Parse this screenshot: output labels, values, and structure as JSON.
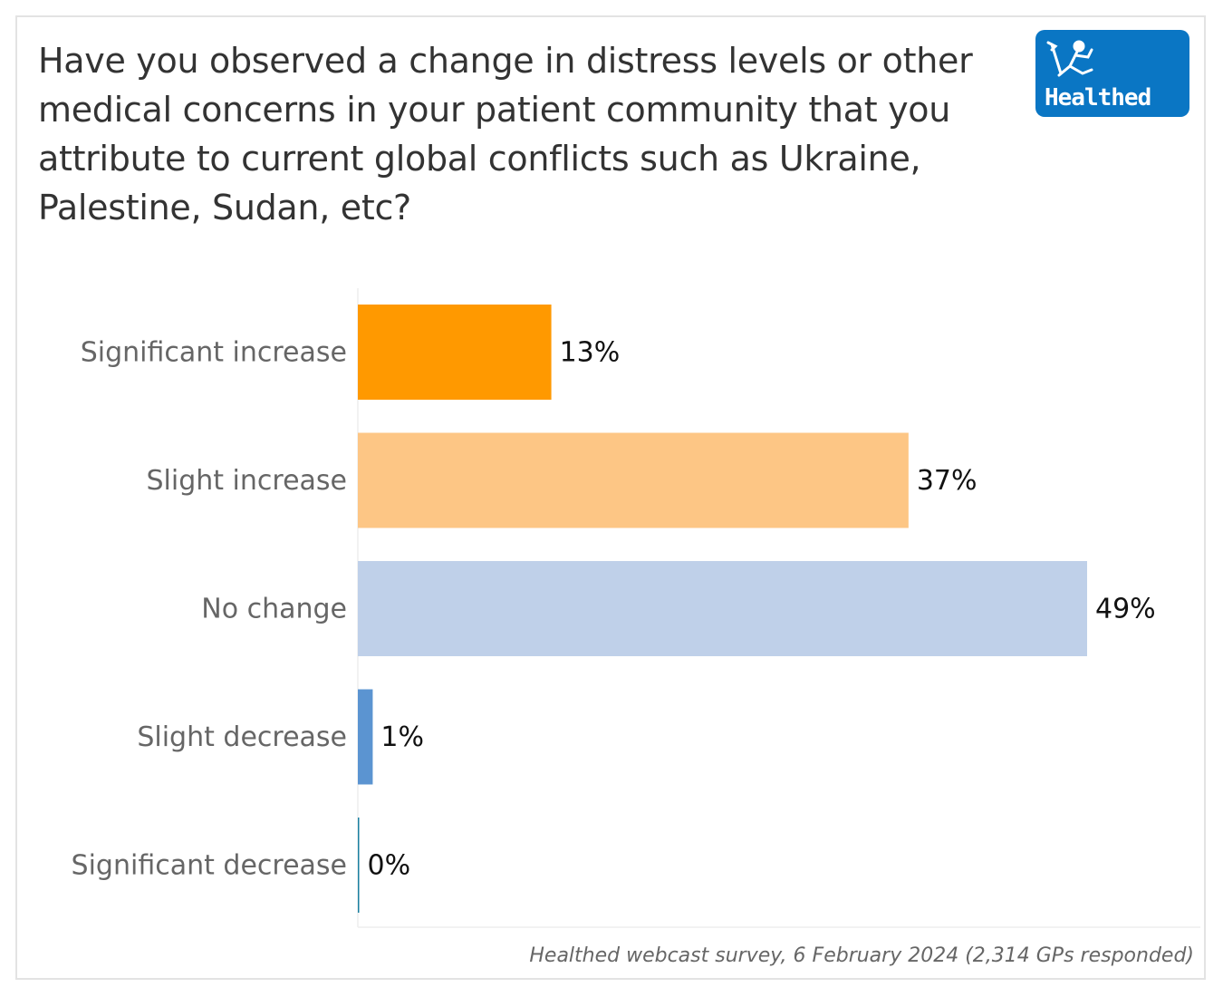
{
  "header": {
    "title": "Have you observed a change in distress levels or other medical concerns in your patient community that you attribute to current global conflicts such as Ukraine, Palestine, Sudan, etc?",
    "logo_text": "Healthed"
  },
  "footer": {
    "source": "Healthed webcast survey, 6 February 2024 (2,314 GPs responded)"
  },
  "chart_data": {
    "type": "bar",
    "orientation": "horizontal",
    "title": "Have you observed a change in distress levels or other medical concerns in your patient community that you attribute to current global conflicts such as Ukraine, Palestine, Sudan, etc?",
    "categories": [
      "Significant increase",
      "Slight increase",
      "No change",
      "Slight decrease",
      "Significant decrease"
    ],
    "values": [
      13,
      37,
      49,
      1,
      0
    ],
    "labels": [
      "13%",
      "37%",
      "49%",
      "1%",
      "0%"
    ],
    "colors": [
      "#ff9900",
      "#fdc685",
      "#bfd0e9",
      "#5b94d1",
      "#1a7fa0"
    ],
    "xlabel": "",
    "ylabel": "",
    "unit": "%",
    "grid": false,
    "legend": "none"
  }
}
